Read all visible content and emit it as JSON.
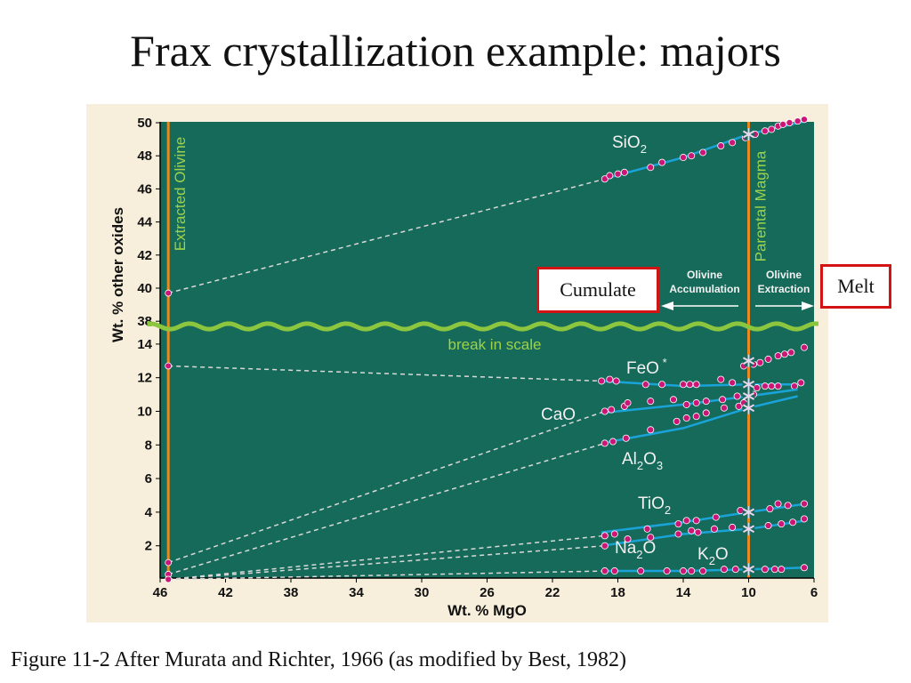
{
  "slide": {
    "title": "Frax crystallization example: majors",
    "caption": "Figure 11-2 After Murata and Richter, 1966 (as modified by Best, 1982)",
    "callouts": {
      "left": "Cumulate",
      "right": "Melt"
    }
  },
  "colors": {
    "plot_bg": "#166a5a",
    "frame_bg": "#f7eedb",
    "trend": "#1aa3d8",
    "point": "#cc1677",
    "dashed": "#d9d9d9",
    "label_white": "#f2f2f2",
    "label_green": "#9ed24a",
    "vertical": "#e88a1f",
    "break": "#8cc63f",
    "callout_border": "#d21414"
  },
  "chart_data": {
    "type": "scatter",
    "xlabel": "Wt. % MgO",
    "ylabel": "Wt. % other oxides",
    "x_reversed": true,
    "xlim": [
      46,
      6
    ],
    "x_ticks": [
      "46",
      "42",
      "38",
      "34",
      "30",
      "26",
      "22",
      "18",
      "14",
      "10",
      "6"
    ],
    "y_ticks_upper": [
      "50",
      "48",
      "46",
      "44",
      "42",
      "40",
      "38"
    ],
    "y_ticks_lower": [
      "14",
      "12",
      "10",
      "8",
      "6",
      "4",
      "2"
    ],
    "ylim_upper": [
      38,
      50
    ],
    "ylim_lower": [
      0,
      15
    ],
    "annotations": {
      "extracted": "Extracted Olivine",
      "parental": "Parental Magma",
      "break": "break in scale",
      "accumulation": [
        "Olivine",
        "Accumulation"
      ],
      "extraction": [
        "Olivine",
        "Extraction"
      ]
    },
    "parent_mgo": 10,
    "olivine_mgo": 45.5,
    "series": [
      {
        "name": "SiO2",
        "label_main": "SiO",
        "label_sub": "2",
        "panel": "upper",
        "olivine": 39.7,
        "trend": [
          [
            18.5,
            46.7
          ],
          [
            14,
            47.9
          ],
          [
            10,
            49.3
          ],
          [
            6.5,
            50.1
          ]
        ],
        "points": [
          [
            18.8,
            46.6
          ],
          [
            18.5,
            46.8
          ],
          [
            18.0,
            46.9
          ],
          [
            17.6,
            47.0
          ],
          [
            16.0,
            47.3
          ],
          [
            15.3,
            47.6
          ],
          [
            14.0,
            47.9
          ],
          [
            13.5,
            48.0
          ],
          [
            12.8,
            48.2
          ],
          [
            11.7,
            48.6
          ],
          [
            11.0,
            48.8
          ],
          [
            10.2,
            49.1
          ],
          [
            9.6,
            49.3
          ],
          [
            9.0,
            49.5
          ],
          [
            8.6,
            49.6
          ],
          [
            8.2,
            49.8
          ],
          [
            7.9,
            49.9
          ],
          [
            7.5,
            50.0
          ],
          [
            7.0,
            50.1
          ],
          [
            6.6,
            50.2
          ]
        ],
        "parent": [
          10,
          49.3
        ]
      },
      {
        "name": "FeO*",
        "label_main": "FeO",
        "label_sub": "",
        "label_sup": "*",
        "panel": "lower",
        "olivine": 12.7,
        "trend": [
          [
            19,
            11.8
          ],
          [
            14,
            11.5
          ],
          [
            10,
            11.6
          ],
          [
            7,
            11.6
          ]
        ],
        "points": [
          [
            19.0,
            11.8
          ],
          [
            18.5,
            11.9
          ],
          [
            18.1,
            11.8
          ],
          [
            16.3,
            11.6
          ],
          [
            15.3,
            11.6
          ],
          [
            14.0,
            11.6
          ],
          [
            13.6,
            11.6
          ],
          [
            13.2,
            11.6
          ],
          [
            11.7,
            11.9
          ],
          [
            11.0,
            11.7
          ],
          [
            9.5,
            11.4
          ],
          [
            9.0,
            11.5
          ],
          [
            8.6,
            11.5
          ],
          [
            8.2,
            11.5
          ],
          [
            7.2,
            11.5
          ],
          [
            6.8,
            11.7
          ]
        ],
        "parent": [
          10,
          11.6
        ]
      },
      {
        "name": "FeO* (high)",
        "panel": "lower",
        "series_extra": true,
        "trend": [],
        "points": [
          [
            10.3,
            12.7
          ],
          [
            9.7,
            12.8
          ],
          [
            9.3,
            12.9
          ],
          [
            8.8,
            13.1
          ],
          [
            8.2,
            13.3
          ],
          [
            7.8,
            13.4
          ],
          [
            7.4,
            13.5
          ],
          [
            6.6,
            13.8
          ]
        ],
        "parent": [
          10,
          13.0
        ]
      },
      {
        "name": "CaO",
        "label_main": "CaO",
        "label_sub": "",
        "panel": "lower",
        "olivine": 1.0,
        "trend": [
          [
            19,
            9.9
          ],
          [
            14,
            10.4
          ],
          [
            10,
            10.9
          ],
          [
            7,
            11.3
          ]
        ],
        "points": [
          [
            18.8,
            10.0
          ],
          [
            18.4,
            10.1
          ],
          [
            17.6,
            10.3
          ],
          [
            17.4,
            10.5
          ],
          [
            16.0,
            10.6
          ],
          [
            14.6,
            10.7
          ],
          [
            13.8,
            10.4
          ],
          [
            13.2,
            10.5
          ],
          [
            12.6,
            10.6
          ],
          [
            11.6,
            10.7
          ],
          [
            10.7,
            10.9
          ],
          [
            9.7,
            11.0
          ]
        ],
        "parent": [
          10,
          10.9
        ]
      },
      {
        "name": "Al2O3",
        "label_main": "Al",
        "label_sub": "2",
        "label_main2": "O",
        "label_sub2": "3",
        "panel": "lower",
        "olivine": 0.3,
        "trend": [
          [
            19,
            8.1
          ],
          [
            14,
            9.0
          ],
          [
            10,
            10.2
          ],
          [
            7,
            10.9
          ]
        ],
        "points": [
          [
            18.8,
            8.1
          ],
          [
            18.3,
            8.2
          ],
          [
            17.5,
            8.4
          ],
          [
            16.0,
            8.9
          ],
          [
            14.4,
            9.4
          ],
          [
            13.8,
            9.6
          ],
          [
            13.2,
            9.7
          ],
          [
            12.6,
            9.9
          ],
          [
            11.5,
            10.2
          ],
          [
            10.6,
            10.3
          ],
          [
            10.3,
            10.5
          ]
        ],
        "parent": [
          10,
          10.2
        ]
      },
      {
        "name": "TiO2",
        "label_main": "TiO",
        "label_sub": "2",
        "panel": "lower",
        "olivine": 0.0,
        "trend": [
          [
            19,
            2.8
          ],
          [
            14,
            3.4
          ],
          [
            10,
            4.0
          ],
          [
            6.5,
            4.5
          ]
        ],
        "points": [
          [
            18.8,
            2.6
          ],
          [
            18.2,
            2.7
          ],
          [
            16.2,
            3.0
          ],
          [
            14.3,
            3.3
          ],
          [
            13.8,
            3.5
          ],
          [
            13.2,
            3.5
          ],
          [
            12.0,
            3.7
          ],
          [
            10.5,
            4.1
          ],
          [
            8.7,
            4.2
          ],
          [
            7.6,
            4.4
          ],
          [
            6.6,
            4.5
          ],
          [
            8.2,
            4.5
          ]
        ],
        "parent": [
          10,
          4.0
        ]
      },
      {
        "name": "Na2O",
        "label_main": "Na",
        "label_sub": "2",
        "label_main2": "O",
        "label_sub2": "",
        "panel": "lower",
        "olivine": 0.0,
        "trend": [
          [
            19,
            2.0
          ],
          [
            14,
            2.7
          ],
          [
            10,
            3.0
          ],
          [
            6.5,
            3.5
          ]
        ],
        "points": [
          [
            18.8,
            2.0
          ],
          [
            17.4,
            2.4
          ],
          [
            16.0,
            2.5
          ],
          [
            14.3,
            2.7
          ],
          [
            13.5,
            2.9
          ],
          [
            13.1,
            2.8
          ],
          [
            12.1,
            3.0
          ],
          [
            11.0,
            3.1
          ],
          [
            8.8,
            3.2
          ],
          [
            8.0,
            3.3
          ],
          [
            7.3,
            3.4
          ],
          [
            6.6,
            3.6
          ]
        ],
        "parent": [
          10,
          3.0
        ]
      },
      {
        "name": "K2O",
        "label_main": "K",
        "label_sub": "2",
        "label_main2": "O",
        "label_sub2": "",
        "panel": "lower",
        "olivine": 0.0,
        "trend": [
          [
            19,
            0.5
          ],
          [
            14,
            0.5
          ],
          [
            10,
            0.6
          ],
          [
            6.5,
            0.7
          ]
        ],
        "points": [
          [
            18.8,
            0.5
          ],
          [
            18.2,
            0.5
          ],
          [
            16.6,
            0.5
          ],
          [
            15.0,
            0.5
          ],
          [
            14.0,
            0.5
          ],
          [
            13.5,
            0.5
          ],
          [
            12.8,
            0.5
          ],
          [
            11.5,
            0.6
          ],
          [
            10.8,
            0.6
          ],
          [
            9.0,
            0.6
          ],
          [
            8.4,
            0.6
          ],
          [
            8.0,
            0.6
          ],
          [
            6.6,
            0.7
          ]
        ],
        "parent": [
          10,
          0.6
        ]
      }
    ]
  }
}
